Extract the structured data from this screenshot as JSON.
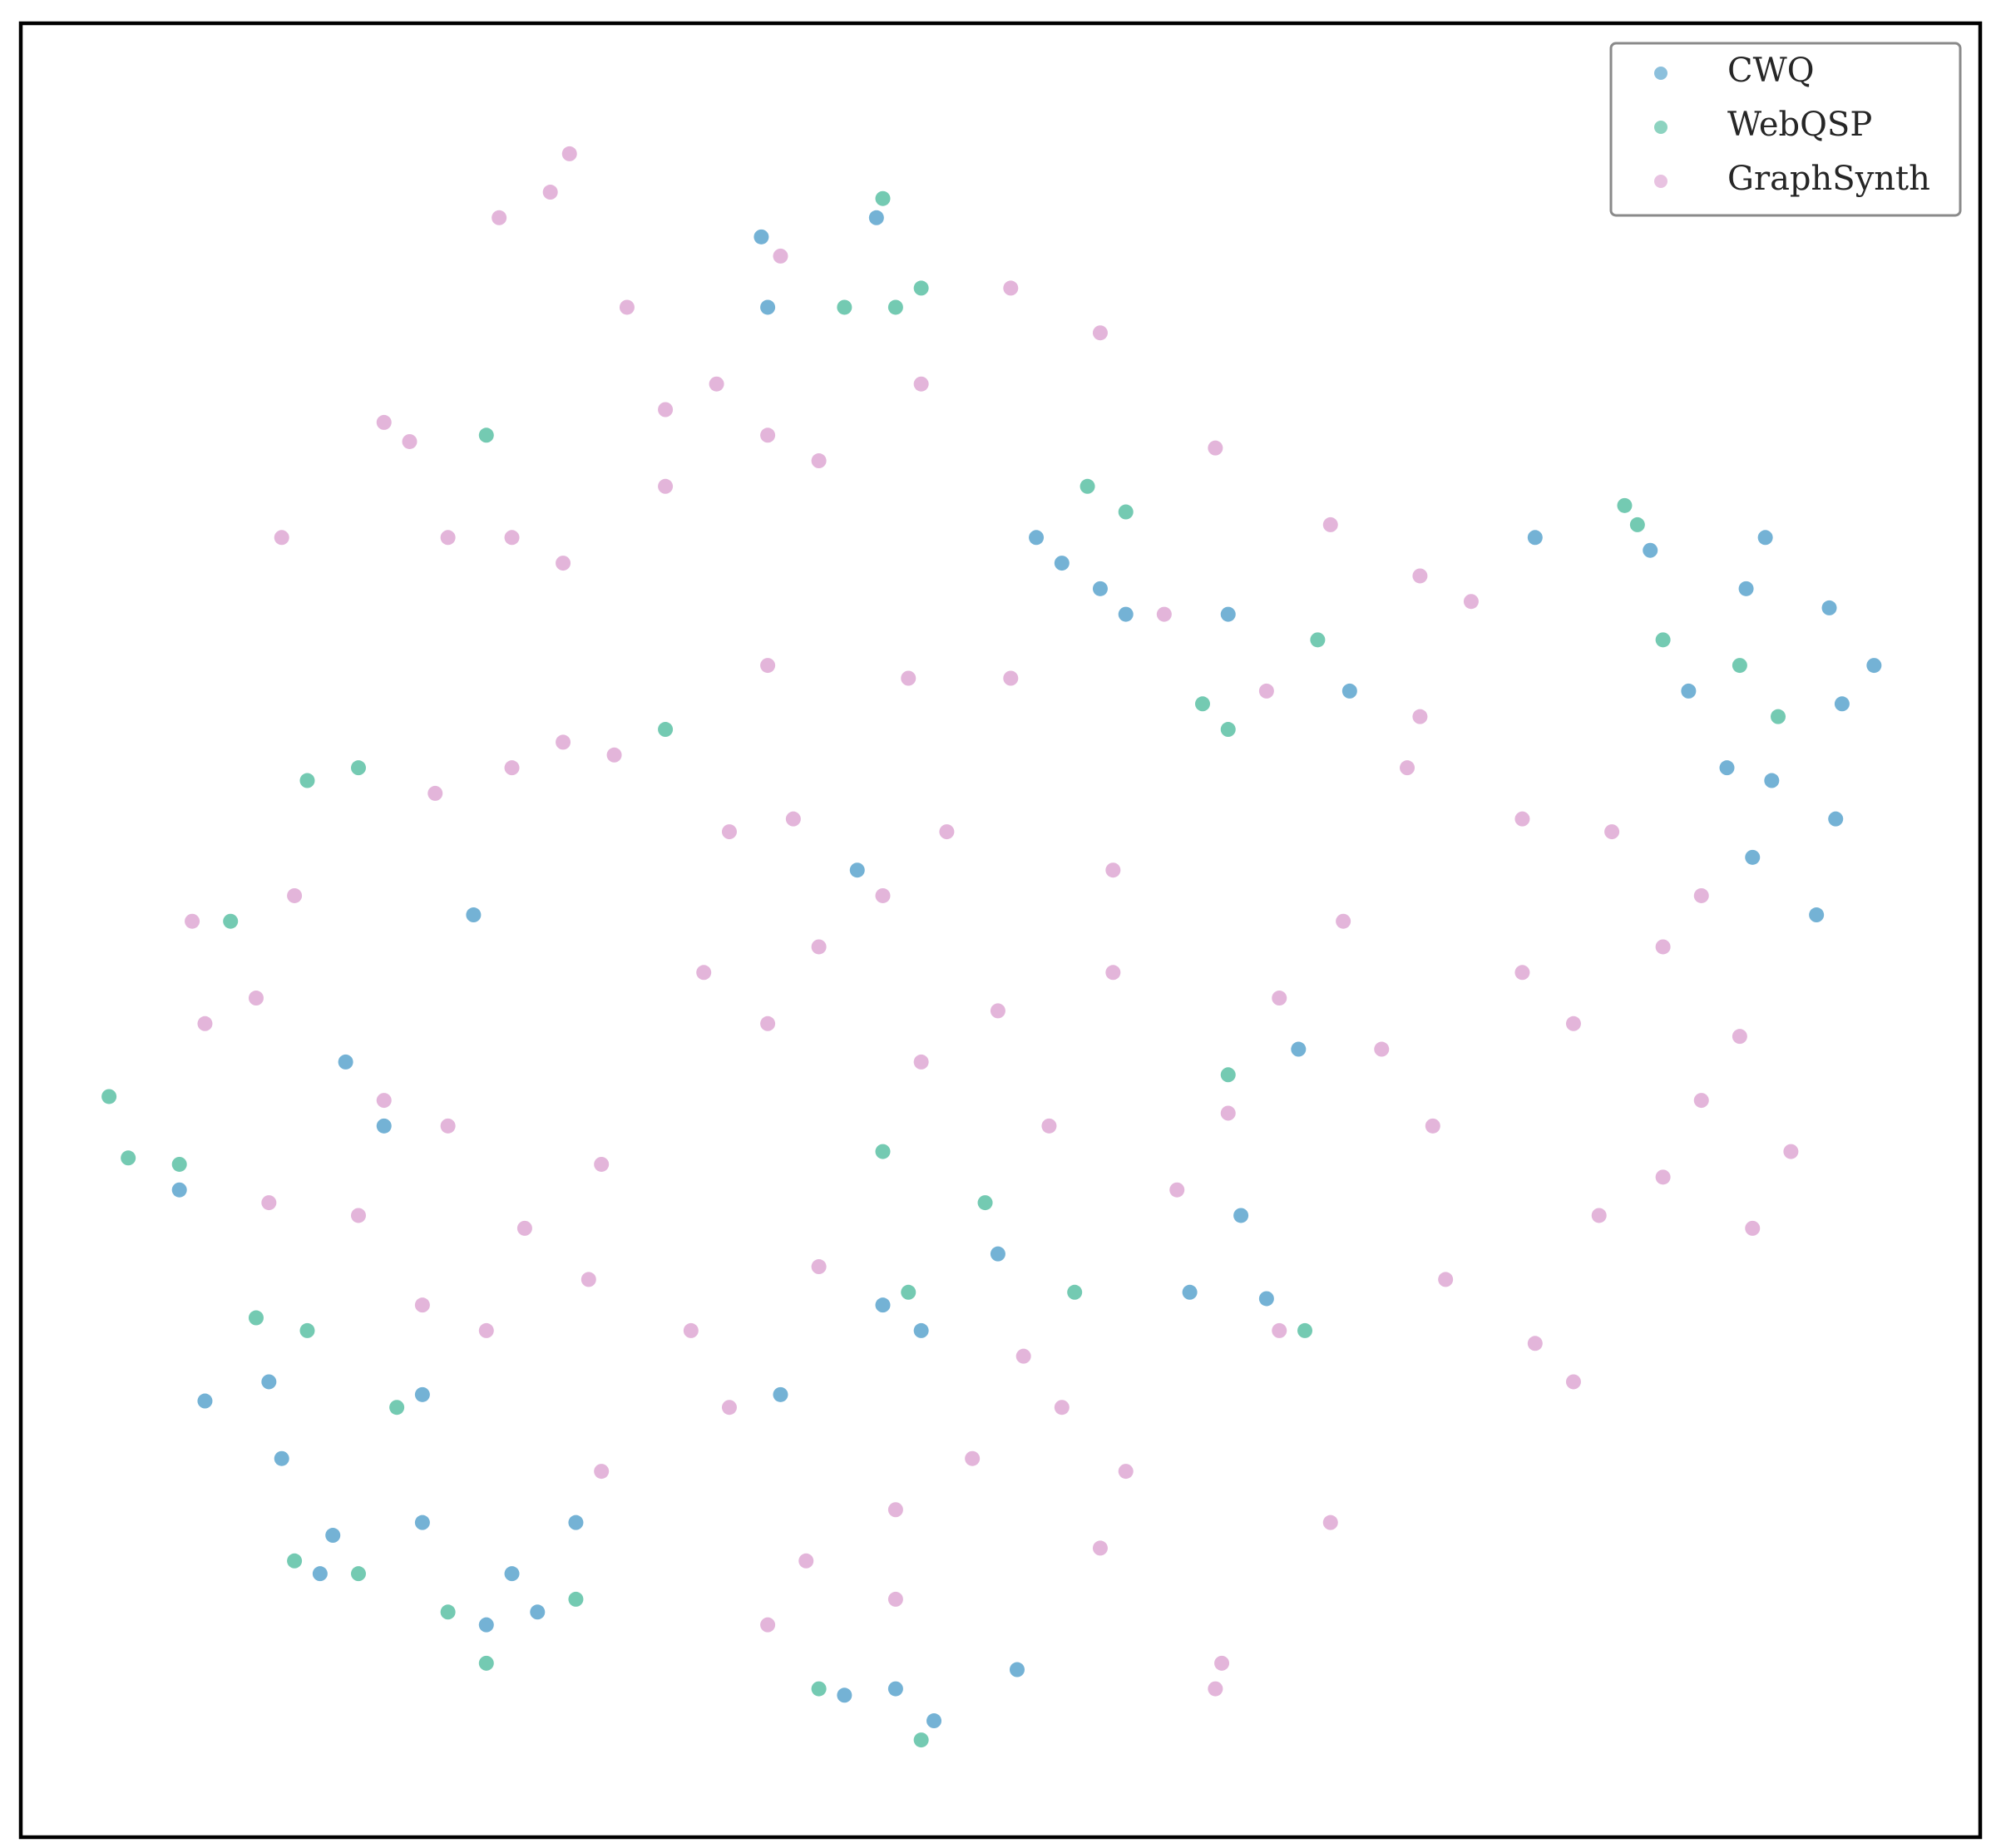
{
  "chart_data": {
    "type": "scatter",
    "xlim": [
      0,
      1532
    ],
    "ylim": [
      0,
      1418
    ],
    "legend": "upper right",
    "grid": false,
    "series": [
      {
        "name": "CWQ",
        "color": "#0173b2",
        "x": [
          579,
          669,
          584,
          794,
          814,
          844,
          864,
          944,
          1184,
          1274,
          1364,
          1349,
          1414,
          1449,
          1424,
          1304,
          1334,
          1369,
          1419,
          1354,
          1404,
          654,
          354,
          999,
          124,
          144,
          194,
          204,
          314,
          244,
          234,
          384,
          404,
          364,
          434,
          314,
          704,
          674,
          764,
          684,
          644,
          714,
          594,
          284,
          254,
          914,
          954,
          1039,
          779,
          974
        ],
        "values": [
          1251,
          1266,
          1196,
          1016,
          996,
          976,
          956,
          956,
          1016,
          1006,
          1016,
          976,
          961,
          916,
          886,
          896,
          836,
          826,
          796,
          766,
          721,
          756,
          721,
          616,
          506,
          341,
          356,
          296,
          346,
          236,
          206,
          206,
          176,
          166,
          246,
          246,
          396,
          416,
          456,
          116,
          111,
          91,
          346,
          556,
          606,
          426,
          486,
          896,
          131,
          421
        ]
      },
      {
        "name": "WebQSP",
        "color": "#029e73",
        "x": [
          674,
          684,
          704,
          644,
          834,
          864,
          1254,
          1264,
          924,
          944,
          1344,
          1374,
          1284,
          944,
          164,
          124,
          84,
          69,
          224,
          184,
          294,
          214,
          264,
          334,
          434,
          364,
          694,
          824,
          754,
          1014,
          1004,
          364,
          264,
          224,
          674,
          704,
          624,
          504
        ],
        "values": [
          1281,
          1196,
          1211,
          1196,
          1056,
          1036,
          1041,
          1026,
          886,
          866,
          916,
          876,
          936,
          596,
          716,
          526,
          531,
          579,
          396,
          406,
          336,
          216,
          206,
          176,
          186,
          136,
          426,
          426,
          496,
          936,
          396,
          1096,
          836,
          826,
          536,
          76,
          116,
          866
        ]
      },
      {
        "name": "GraphSynth",
        "color": "#cc78bc",
        "x": [
          414,
          429,
          374,
          284,
          304,
          384,
          424,
          334,
          504,
          584,
          624,
          544,
          474,
          594,
          704,
          774,
          844,
          504,
          584,
          694,
          424,
          384,
          464,
          324,
          554,
          604,
          724,
          674,
          534,
          624,
          584,
          704,
          764,
          334,
          284,
          184,
          144,
          214,
          394,
          444,
          264,
          194,
          554,
          524,
          624,
          864,
          814,
          744,
          804,
          854,
          944,
          904,
          1094,
          1134,
          1024,
          934,
          1174,
          1084,
          1174,
          1214,
          1284,
          1314,
          1104,
          1064,
          1234,
          1284,
          1344,
          1184,
          1214,
          984,
          1034,
          854,
          934,
          939,
          1024,
          684,
          584,
          454,
          784,
          984,
          1114,
          684,
          844,
          364,
          314,
          134,
          974,
          1244,
          1384,
          1354,
          774,
          454,
          614,
          1094,
          894,
          204,
          1314
        ],
        "values": [
          1286,
          1316,
          1266,
          1106,
          1091,
          1016,
          996,
          1016,
          1116,
          1096,
          1076,
          1136,
          1196,
          1236,
          1136,
          1211,
          1176,
          1056,
          916,
          906,
          856,
          836,
          846,
          816,
          786,
          796,
          786,
          736,
          676,
          696,
          636,
          606,
          646,
          556,
          576,
          656,
          636,
          736,
          476,
          436,
          486,
          496,
          336,
          396,
          446,
          286,
          336,
          296,
          556,
          676,
          566,
          506,
          986,
          966,
          1026,
          1086,
          796,
          836,
          676,
          636,
          696,
          736,
          556,
          616,
          486,
          516,
          626,
          386,
          356,
          656,
          716,
          756,
          116,
          136,
          246,
          186,
          166,
          526,
          376,
          396,
          436,
          256,
          226,
          396,
          416,
          716,
          896,
          786,
          536,
          476,
          906,
          286,
          216,
          876,
          956,
          1016,
          576
        ]
      }
    ]
  }
}
